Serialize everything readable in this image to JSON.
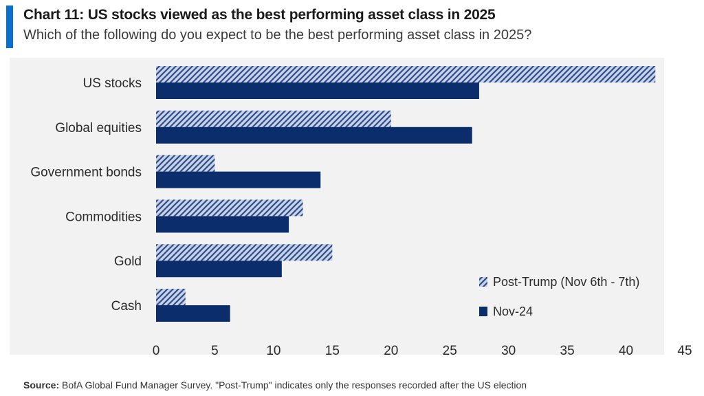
{
  "header": {
    "title": "Chart 11: US stocks viewed as the best performing asset class in 2025",
    "subtitle": "Which of the following do you expect to be the best performing asset class in 2025?"
  },
  "footer": {
    "source_label": "Source:",
    "source_text": "BofA Global Fund Manager Survey. \"Post-Trump\" indicates only the responses recorded after the US election"
  },
  "colors": {
    "accent": "#0b6fd1",
    "navy": "#0c2d6b",
    "hatch_light": "#c9d2e4"
  },
  "chart_data": {
    "type": "bar",
    "orientation": "horizontal",
    "categories": [
      "US stocks",
      "Global equities",
      "Government bonds",
      "Commodities",
      "Gold",
      "Cash"
    ],
    "series": [
      {
        "name": "Post-Trump (Nov 6th - 7th)",
        "values": [
          42.5,
          20,
          5,
          12.5,
          15,
          2.5
        ],
        "style": "hatched"
      },
      {
        "name": "Nov-24",
        "values": [
          27.5,
          26.9,
          14,
          11.3,
          10.7,
          6.3
        ],
        "style": "solid"
      }
    ],
    "xlim": [
      0,
      45
    ],
    "xticks": [
      "0",
      "5",
      "10",
      "15",
      "20",
      "25",
      "30",
      "35",
      "40",
      "45"
    ],
    "legend_position": "bottom-right",
    "grid": false
  }
}
